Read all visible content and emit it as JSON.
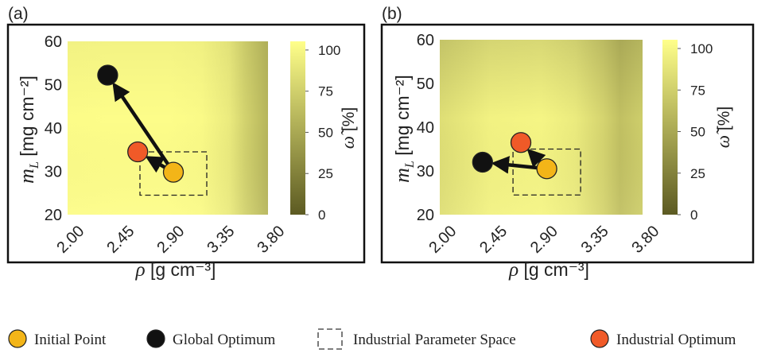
{
  "chart_data": [
    {
      "panel_label": "(a)",
      "type": "heatmap",
      "x_axis": {
        "label_symbol": "ρ",
        "label_unit": " [g cm⁻³]",
        "ticks": [
          "2.00",
          "2.45",
          "2.90",
          "3.35",
          "3.80"
        ],
        "range": [
          2.0,
          3.8
        ]
      },
      "y_axis": {
        "label_symbol": "m",
        "label_sub": "L",
        "label_unit": " [mg cm⁻²]",
        "ticks": [
          "20",
          "30",
          "40",
          "50",
          "60"
        ],
        "range": [
          20,
          60
        ]
      },
      "colorbar": {
        "label_symbol": "ω̃",
        "label_unit": " [%]",
        "ticks": [
          "0",
          "25",
          "50",
          "75",
          "100"
        ],
        "range": [
          0,
          100
        ],
        "colors": [
          "#5c5a22",
          "#ffff8a"
        ]
      },
      "heatmap_profile": {
        "description_x": [
          2.0,
          2.45,
          2.9,
          3.2,
          3.45,
          3.6,
          3.8
        ],
        "value": [
          98,
          99,
          99,
          97,
          88,
          72,
          55
        ]
      },
      "points": {
        "initial": {
          "x": 2.95,
          "y": 29.8
        },
        "global": {
          "x": 2.36,
          "y": 52.2
        },
        "industrial": {
          "x": 2.63,
          "y": 34.5
        }
      },
      "industrial_space": {
        "x": [
          2.65,
          3.25
        ],
        "y": [
          24.5,
          34.5
        ]
      },
      "arrows": [
        {
          "from": "initial",
          "to": "global"
        },
        {
          "from": "initial",
          "to": "industrial"
        }
      ]
    },
    {
      "panel_label": "(b)",
      "type": "heatmap",
      "x_axis": {
        "label_symbol": "ρ",
        "label_unit": " [g cm⁻³]",
        "ticks": [
          "2.00",
          "2.45",
          "2.90",
          "3.35",
          "3.80"
        ],
        "range": [
          2.0,
          3.8
        ]
      },
      "y_axis": {
        "label_symbol": "m",
        "label_sub": "L",
        "label_unit": " [mg cm⁻²]",
        "ticks": [
          "20",
          "30",
          "40",
          "50",
          "60"
        ],
        "range": [
          20,
          60
        ]
      },
      "colorbar": {
        "label_symbol": "ω̃",
        "label_unit": " [%]",
        "ticks": [
          "0",
          "25",
          "50",
          "75",
          "100"
        ],
        "range": [
          0,
          100
        ],
        "colors": [
          "#5c5a22",
          "#ffff8a"
        ]
      },
      "heatmap_profile": {
        "description_x": [
          2.0,
          2.45,
          2.9,
          3.2,
          3.45,
          3.6,
          3.8
        ],
        "value": [
          80,
          92,
          94,
          88,
          74,
          62,
          70
        ]
      },
      "points": {
        "initial": {
          "x": 2.95,
          "y": 30.5
        },
        "global": {
          "x": 2.38,
          "y": 32.0
        },
        "industrial": {
          "x": 2.72,
          "y": 36.5
        }
      },
      "industrial_space": {
        "x": [
          2.65,
          3.25
        ],
        "y": [
          24.5,
          35.0
        ]
      },
      "arrows": [
        {
          "from": "initial",
          "to": "global"
        },
        {
          "from": "initial",
          "to": "industrial"
        }
      ]
    }
  ],
  "legend": {
    "items": [
      {
        "kind": "initial",
        "label": "Initial Point",
        "color": "#f3b518"
      },
      {
        "kind": "global",
        "label": "Global Optimum",
        "color": "#111111"
      },
      {
        "kind": "space",
        "label": "Industrial Parameter Space",
        "color": "#333333"
      },
      {
        "kind": "industrial",
        "label": "Industrial Optimum",
        "color": "#f05a28"
      }
    ]
  },
  "colors": {
    "initial": "#f3b518",
    "global": "#111111",
    "industrial": "#f05a28",
    "frame": "#111111"
  }
}
